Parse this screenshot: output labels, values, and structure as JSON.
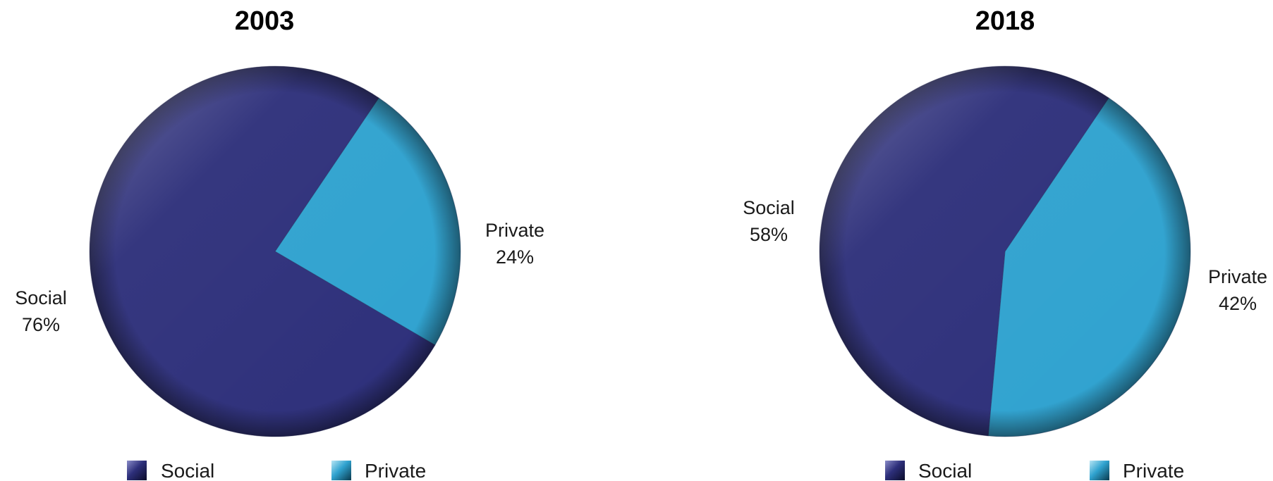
{
  "chart_data": [
    {
      "type": "pie",
      "title": "2003",
      "slices": [
        {
          "label": "Social",
          "value": 76,
          "value_label": "76%",
          "color": "#2d2f7a"
        },
        {
          "label": "Private",
          "value": 24,
          "value_label": "24%",
          "color": "#2fa2cf"
        }
      ],
      "legend": {
        "position": "bottom",
        "entries": [
          "Social",
          "Private"
        ]
      }
    },
    {
      "type": "pie",
      "title": "2018",
      "slices": [
        {
          "label": "Social",
          "value": 58,
          "value_label": "58%",
          "color": "#2d2f7a"
        },
        {
          "label": "Private",
          "value": 42,
          "value_label": "42%",
          "color": "#2fa2cf"
        }
      ],
      "legend": {
        "position": "bottom",
        "entries": [
          "Social",
          "Private"
        ]
      }
    }
  ]
}
